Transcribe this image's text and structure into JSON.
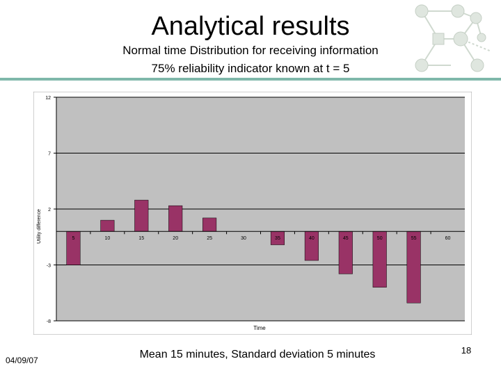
{
  "slide": {
    "title": "Analytical results",
    "subtitle_line1": "Normal time Distribution for receiving information",
    "subtitle_line2": "75% reliability indicator known at t = 5",
    "footer_date": "04/09/07",
    "footer_caption": "Mean 15 minutes, Standard deviation 5 minutes",
    "page_number": "18"
  },
  "colors": {
    "bar": "#993366",
    "plot_bg": "#c0c0c0",
    "rule": "#7fb8aa"
  },
  "chart_data": {
    "type": "bar",
    "title": "",
    "xlabel": "Time",
    "ylabel": "Utility difference",
    "categories": [
      "5",
      "10",
      "15",
      "20",
      "25",
      "30",
      "35",
      "40",
      "45",
      "50",
      "55",
      "60"
    ],
    "values": [
      -3.0,
      1.0,
      2.8,
      2.3,
      1.2,
      0,
      -1.2,
      -2.6,
      -3.8,
      -5.0,
      -6.4,
      0
    ],
    "yticks": [
      -8,
      -3,
      2,
      7,
      12
    ],
    "ytick_labels": [
      "-8",
      "-3",
      "2",
      "7",
      "12"
    ],
    "ylim": [
      -8,
      12
    ],
    "grid": true,
    "legend": "none"
  }
}
